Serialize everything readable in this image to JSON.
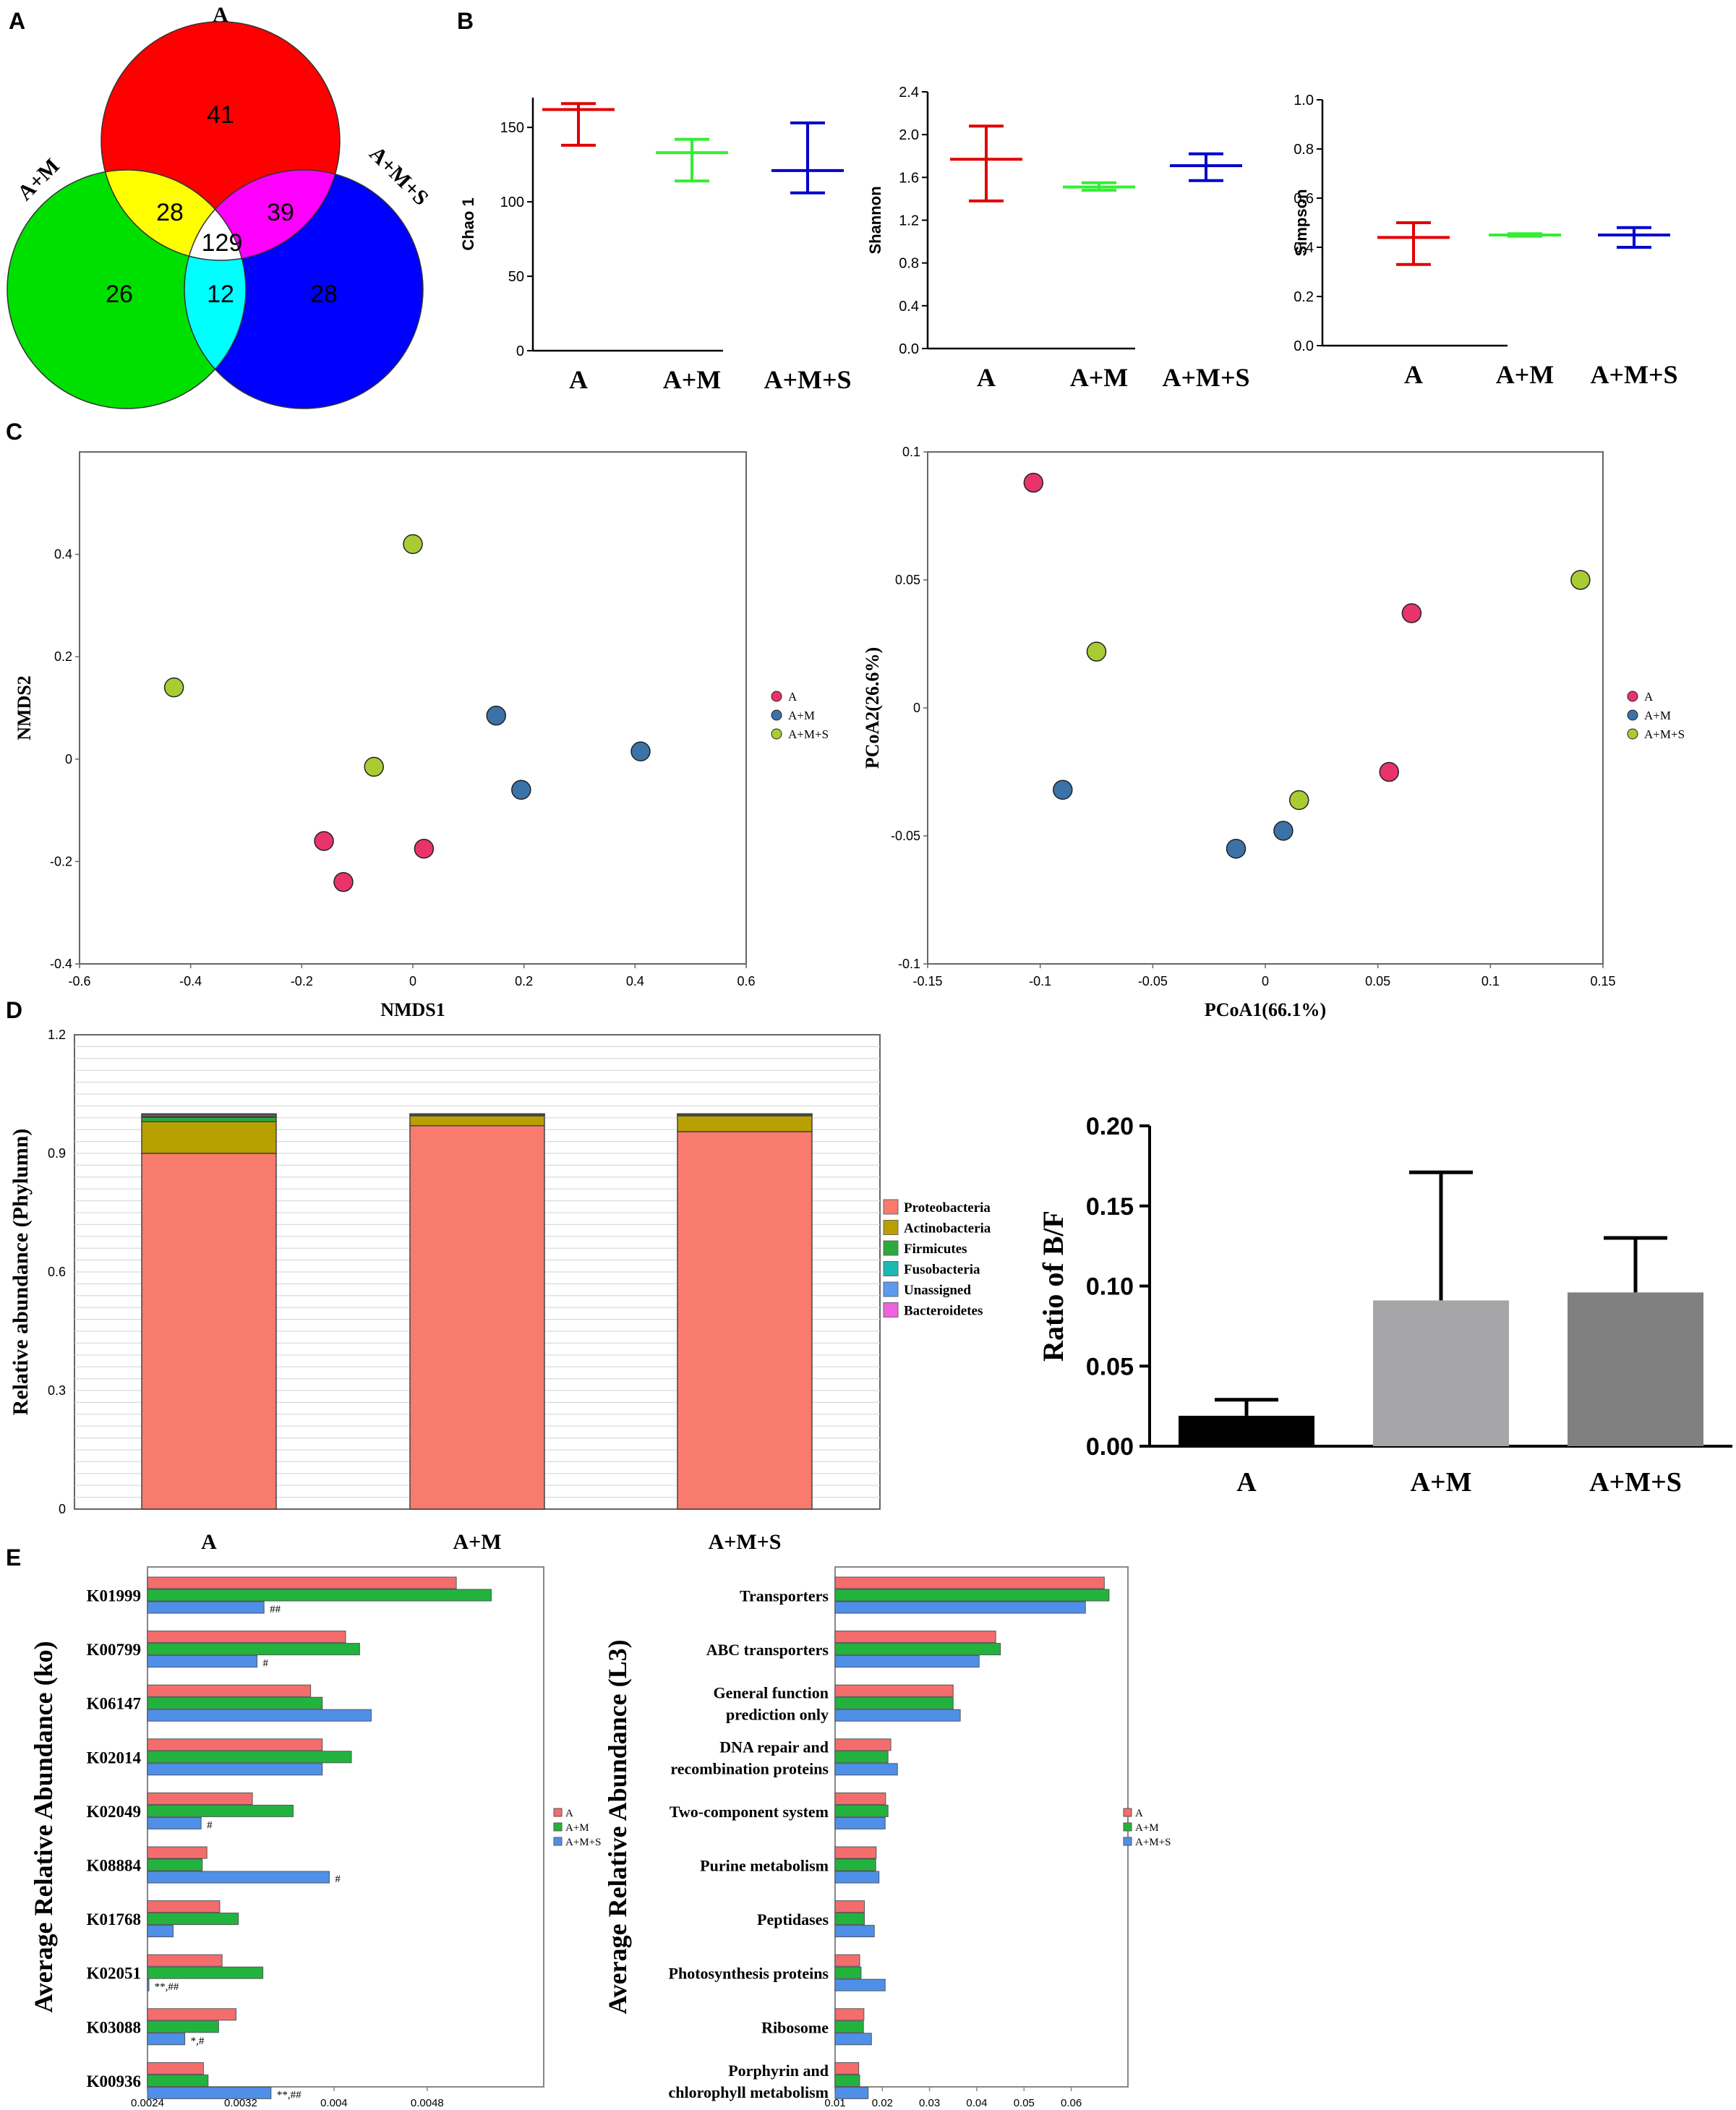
{
  "chart_data": [
    {
      "panel": "A",
      "type": "venn",
      "sets": [
        {
          "name": "A",
          "color": "#ff0000"
        },
        {
          "name": "A+M",
          "color": "#00e000"
        },
        {
          "name": "A+M+S",
          "color": "#0000ff"
        }
      ],
      "regions": {
        "A_only": 41,
        "AM_only": 26,
        "AMS_only": 28,
        "A_AM": 28,
        "A_AMS": 39,
        "AM_AMS": 12,
        "all": 129
      },
      "region_colors": {
        "A_AM": "#ffff00",
        "A_AMS": "#ff00ff",
        "AM_AMS": "#00ffff",
        "all": "#ffffff"
      }
    },
    {
      "panel": "B",
      "type": "errorbar",
      "title": "Chao 1",
      "ylabel": "Chao 1",
      "ylim": [
        0,
        170
      ],
      "yticks": [
        0,
        50,
        100,
        150
      ],
      "ytick_labels": [
        "0",
        "50",
        "100",
        "150"
      ],
      "categories": [
        "A",
        "A+M",
        "A+M+S"
      ],
      "colors": [
        "#e00000",
        "#33ee33",
        "#0000cc"
      ],
      "mean": [
        162,
        133,
        121
      ],
      "low": [
        138,
        114,
        106
      ],
      "high": [
        166,
        142,
        153
      ]
    },
    {
      "panel": "B",
      "type": "errorbar",
      "title": "Shannon",
      "ylabel": "Shannon",
      "ylim": [
        0,
        2.4
      ],
      "yticks": [
        0,
        0.4,
        0.8,
        1.2,
        1.6,
        2.0,
        2.4
      ],
      "ytick_labels": [
        "0.0",
        "0.4",
        "0.8",
        "1.2",
        "1.6",
        "2.0",
        "2.4"
      ],
      "categories": [
        "A",
        "A+M",
        "A+M+S"
      ],
      "colors": [
        "#e00000",
        "#33ee33",
        "#0000cc"
      ],
      "mean": [
        1.77,
        1.51,
        1.71
      ],
      "low": [
        1.38,
        1.48,
        1.57
      ],
      "high": [
        2.08,
        1.55,
        1.82
      ]
    },
    {
      "panel": "B",
      "type": "errorbar",
      "title": "Simpson",
      "ylabel": "Simpson",
      "ylim": [
        0,
        1.0
      ],
      "yticks": [
        0,
        0.2,
        0.4,
        0.6,
        0.8,
        1.0
      ],
      "ytick_labels": [
        "0.0",
        "0.2",
        "0.4",
        "0.6",
        "0.8",
        "1.0"
      ],
      "categories": [
        "A",
        "A+M",
        "A+M+S"
      ],
      "colors": [
        "#e00000",
        "#33ee33",
        "#0000cc"
      ],
      "mean": [
        0.44,
        0.45,
        0.45
      ],
      "low": [
        0.33,
        0.445,
        0.4
      ],
      "high": [
        0.5,
        0.455,
        0.48
      ]
    },
    {
      "panel": "C",
      "type": "scatter",
      "title": "NMDS",
      "xlabel": "NMDS1",
      "ylabel": "NMDS2",
      "xlim": [
        -0.6,
        0.6
      ],
      "ylim": [
        -0.4,
        0.6
      ],
      "xticks": [
        -0.6,
        -0.4,
        -0.2,
        0,
        0.2,
        0.4,
        0.6
      ],
      "xtick_labels": [
        "-0.6",
        "-0.4",
        "-0.2",
        "0",
        "0.2",
        "0.4",
        "0.6"
      ],
      "yticks": [
        -0.4,
        -0.2,
        0,
        0.2,
        0.4
      ],
      "ytick_labels": [
        "-0.4",
        "-0.2",
        "0",
        "0.2",
        "0.4"
      ],
      "legend_position": "right",
      "series": [
        {
          "name": "A",
          "color": "#e8336b",
          "x": [
            -0.16,
            -0.125,
            0.02
          ],
          "y": [
            -0.16,
            -0.24,
            -0.175
          ]
        },
        {
          "name": "A+M",
          "color": "#3b73a8",
          "x": [
            0.15,
            0.195,
            0.41
          ],
          "y": [
            0.085,
            -0.06,
            0.015
          ]
        },
        {
          "name": "A+M+S",
          "color": "#aacc33",
          "x": [
            0.0,
            -0.43,
            -0.07
          ],
          "y": [
            0.42,
            0.14,
            -0.015
          ]
        }
      ]
    },
    {
      "panel": "C",
      "type": "scatter",
      "title": "PCoA",
      "xlabel": "PCoA1(66.1%)",
      "ylabel": "PCoA2(26.6%)",
      "xlim": [
        -0.15,
        0.15
      ],
      "ylim": [
        -0.1,
        0.1
      ],
      "xticks": [
        -0.15,
        -0.1,
        -0.05,
        0,
        0.05,
        0.1,
        0.15
      ],
      "xtick_labels": [
        "-0.15",
        "-0.1",
        "-0.05",
        "0",
        "0.05",
        "0.1",
        "0.15"
      ],
      "yticks": [
        -0.1,
        -0.05,
        0,
        0.05,
        0.1
      ],
      "ytick_labels": [
        "-0.1",
        "-0.05",
        "0",
        "0.05",
        "0.1"
      ],
      "legend_position": "right",
      "series": [
        {
          "name": "A",
          "color": "#e8336b",
          "x": [
            -0.103,
            0.065,
            0.055
          ],
          "y": [
            0.088,
            0.037,
            -0.025
          ]
        },
        {
          "name": "A+M",
          "color": "#3b73a8",
          "x": [
            -0.09,
            -0.013,
            0.008
          ],
          "y": [
            -0.032,
            -0.055,
            -0.048
          ]
        },
        {
          "name": "A+M+S",
          "color": "#aacc33",
          "x": [
            -0.075,
            0.015,
            0.14
          ],
          "y": [
            0.022,
            -0.036,
            0.05
          ]
        }
      ]
    },
    {
      "panel": "D",
      "type": "bar",
      "stacked": true,
      "ylabel": "Relative abundance (Phylumn)",
      "ylim": [
        0,
        1.2
      ],
      "yticks": [
        0,
        0.3,
        0.6,
        0.9,
        1.2
      ],
      "ytick_labels": [
        "0",
        "0.3",
        "0.6",
        "0.9",
        "1.2"
      ],
      "categories": [
        "A",
        "A+M",
        "A+M+S"
      ],
      "legend_position": "right",
      "series": [
        {
          "name": "Proteobacteria",
          "color": "#f87b6e",
          "values": [
            0.9,
            0.97,
            0.955
          ]
        },
        {
          "name": "Actinobacteria",
          "color": "#b8a000",
          "values": [
            0.08,
            0.025,
            0.04
          ]
        },
        {
          "name": "Firmicutes",
          "color": "#2ca83c",
          "values": [
            0.011,
            0.003,
            0.003
          ]
        },
        {
          "name": "Fusobacteria",
          "color": "#1bb9b0",
          "values": [
            0.003,
            0.001,
            0.001
          ]
        },
        {
          "name": "Unassigned",
          "color": "#5b9bf0",
          "values": [
            0.004,
            0.001,
            0.001
          ]
        },
        {
          "name": "Bacteroidetes",
          "color": "#f062e0",
          "values": [
            0.002,
            0.0,
            0.0
          ]
        }
      ]
    },
    {
      "panel": "D",
      "type": "bar",
      "ylabel": "Ratio of B/F",
      "ylim": [
        0,
        0.2
      ],
      "yticks": [
        0,
        0.05,
        0.1,
        0.15,
        0.2
      ],
      "ytick_labels": [
        "0.00",
        "0.05",
        "0.10",
        "0.15",
        "0.20"
      ],
      "categories": [
        "A",
        "A+M",
        "A+M+S"
      ],
      "colors": [
        "#000000",
        "#a6a6a8",
        "#808080"
      ],
      "values": [
        0.019,
        0.091,
        0.096
      ],
      "error_high": [
        0.029,
        0.171,
        0.13
      ]
    },
    {
      "panel": "E",
      "type": "bar",
      "orientation": "horizontal",
      "ylabel": "Average Relative Abundance (ko)",
      "xlim": [
        0.0024,
        0.0058
      ],
      "xticks": [
        0.0024,
        0.0032,
        0.004,
        0.0048
      ],
      "xtick_labels": [
        "0.0024",
        "0.0032",
        "0.004",
        "0.0048"
      ],
      "categories": [
        "K01999",
        "K00799",
        "K06147",
        "K02014",
        "K02049",
        "K08884",
        "K01768",
        "K02051",
        "K03088",
        "K00936"
      ],
      "annotations": [
        "##",
        "#",
        "",
        "",
        "#",
        "#",
        "",
        "**,##",
        "*,#",
        "**,##"
      ],
      "legend_position": "right",
      "series": [
        {
          "name": "A",
          "color": "#f46d6d",
          "values": [
            0.00505,
            0.0041,
            0.0038,
            0.0039,
            0.0033,
            0.00291,
            0.00302,
            0.00304,
            0.00316,
            0.00288
          ]
        },
        {
          "name": "A+M",
          "color": "#22b33e",
          "values": [
            0.00535,
            0.00422,
            0.0039,
            0.00415,
            0.00365,
            0.00287,
            0.00318,
            0.00339,
            0.00301,
            0.00292
          ]
        },
        {
          "name": "A+M+S",
          "color": "#4f8fe8",
          "values": [
            0.0034,
            0.00334,
            0.00432,
            0.0039,
            0.00286,
            0.00396,
            0.00262,
            0.00241,
            0.00272,
            0.00346
          ]
        }
      ]
    },
    {
      "panel": "E",
      "type": "bar",
      "orientation": "horizontal",
      "ylabel": "Average Relative Abundance (L3)",
      "xlim": [
        0.01,
        0.072
      ],
      "xticks": [
        0.01,
        0.02,
        0.03,
        0.04,
        0.05,
        0.06
      ],
      "xtick_labels": [
        "0.01",
        "0.02",
        "0.03",
        "0.04",
        "0.05",
        "0.06"
      ],
      "categories": [
        "Transporters",
        "ABC transporters",
        "General function\nprediction only",
        "DNA repair and\nrecombination proteins",
        "Two-component system",
        "Purine metabolism",
        "Peptidases",
        "Photosynthesis proteins",
        "Ribosome",
        "Porphyrin and\nchlorophyll metabolism"
      ],
      "legend_position": "right",
      "series": [
        {
          "name": "A",
          "color": "#f46d6d",
          "values": [
            0.067,
            0.044,
            0.035,
            0.0218,
            0.0207,
            0.0187,
            0.0162,
            0.0152,
            0.0161,
            0.015
          ]
        },
        {
          "name": "A+M",
          "color": "#22b33e",
          "values": [
            0.068,
            0.045,
            0.035,
            0.0212,
            0.0212,
            0.0186,
            0.0162,
            0.0155,
            0.016,
            0.0152
          ]
        },
        {
          "name": "A+M+S",
          "color": "#4f8fe8",
          "values": [
            0.063,
            0.0405,
            0.0365,
            0.0232,
            0.0206,
            0.0193,
            0.0183,
            0.0206,
            0.0177,
            0.017
          ]
        }
      ]
    }
  ],
  "panel_letters": [
    "A",
    "B",
    "C",
    "D",
    "E"
  ]
}
